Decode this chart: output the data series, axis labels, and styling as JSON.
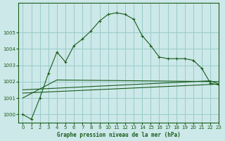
{
  "bg_color": "#cce8e8",
  "grid_color": "#99cccc",
  "line_color": "#1a5c1a",
  "title": "Graphe pression niveau de la mer (hPa)",
  "xlim": [
    -0.5,
    23
  ],
  "ylim": [
    999.5,
    1006.8
  ],
  "yticks": [
    1000,
    1001,
    1002,
    1003,
    1004,
    1005
  ],
  "xticks": [
    0,
    1,
    2,
    3,
    4,
    5,
    6,
    7,
    8,
    9,
    10,
    11,
    12,
    13,
    14,
    15,
    16,
    17,
    18,
    19,
    20,
    21,
    22,
    23
  ],
  "series1_x": [
    0,
    1,
    2,
    3,
    4,
    5,
    6,
    7,
    8,
    9,
    10,
    11,
    12,
    13,
    14,
    15,
    16,
    17,
    18,
    19,
    20,
    21,
    22,
    23
  ],
  "series1_y": [
    1000.0,
    999.7,
    1001.0,
    1002.5,
    1003.8,
    1003.2,
    1004.2,
    1004.6,
    1005.1,
    1005.7,
    1006.1,
    1006.2,
    1006.1,
    1005.8,
    1004.8,
    1004.2,
    1003.5,
    1003.4,
    1003.4,
    1003.4,
    1003.3,
    1002.8,
    1001.9,
    1001.8
  ],
  "series2_x": [
    0,
    4,
    23
  ],
  "series2_y": [
    1001.0,
    1002.1,
    1002.0
  ],
  "series3_x": [
    0,
    23
  ],
  "series3_y": [
    1001.3,
    1001.85
  ],
  "series4_x": [
    0,
    22,
    23
  ],
  "series4_y": [
    1001.5,
    1002.05,
    1001.85
  ]
}
